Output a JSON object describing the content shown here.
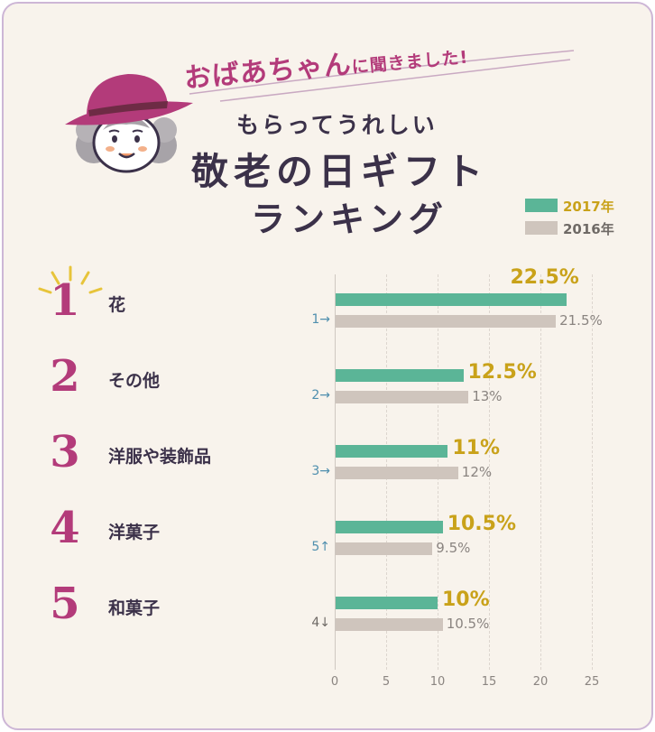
{
  "header": {
    "subtitle_big": "おばあちゃん",
    "subtitle_small": "に聞きました!",
    "lead": "もらってうれしい",
    "title_line1": "敬老の日ギフト",
    "title_line2": "ランキング"
  },
  "chart_data": {
    "type": "bar",
    "orientation": "horizontal",
    "xlim": [
      0,
      25
    ],
    "xticks": [
      0,
      5,
      10,
      15,
      20,
      25
    ],
    "grid": true,
    "legend_position": "top-right",
    "colors": {
      "s2017": "#5bb597",
      "s2016": "#cfc5bd",
      "accent": "#b33b7a",
      "value": "#c9a21a",
      "arrow": "#4f8fae"
    },
    "series": [
      {
        "name": "2017年",
        "color": "#5bb597"
      },
      {
        "name": "2016年",
        "color": "#cfc5bd"
      }
    ],
    "rows": [
      {
        "rank": "1",
        "category": "花",
        "v2017": 22.5,
        "label2017": "22.5%",
        "v2016": 21.5,
        "label2016": "21.5%",
        "prev_rank": "1",
        "trend_icon": "→",
        "trend_color": "#4f8fae"
      },
      {
        "rank": "2",
        "category": "その他",
        "v2017": 12.5,
        "label2017": "12.5%",
        "v2016": 13,
        "label2016": "13%",
        "prev_rank": "2",
        "trend_icon": "→",
        "trend_color": "#4f8fae"
      },
      {
        "rank": "3",
        "category": "洋服や装飾品",
        "v2017": 11,
        "label2017": "11%",
        "v2016": 12,
        "label2016": "12%",
        "prev_rank": "3",
        "trend_icon": "→",
        "trend_color": "#4f8fae"
      },
      {
        "rank": "4",
        "category": "洋菓子",
        "v2017": 10.5,
        "label2017": "10.5%",
        "v2016": 9.5,
        "label2016": "9.5%",
        "prev_rank": "5",
        "trend_icon": "↑",
        "trend_color": "#4f8fae"
      },
      {
        "rank": "5",
        "category": "和菓子",
        "v2017": 10,
        "label2017": "10%",
        "v2016": 10.5,
        "label2016": "10.5%",
        "prev_rank": "4",
        "trend_icon": "↓",
        "trend_color": "#6f6a66"
      }
    ]
  }
}
